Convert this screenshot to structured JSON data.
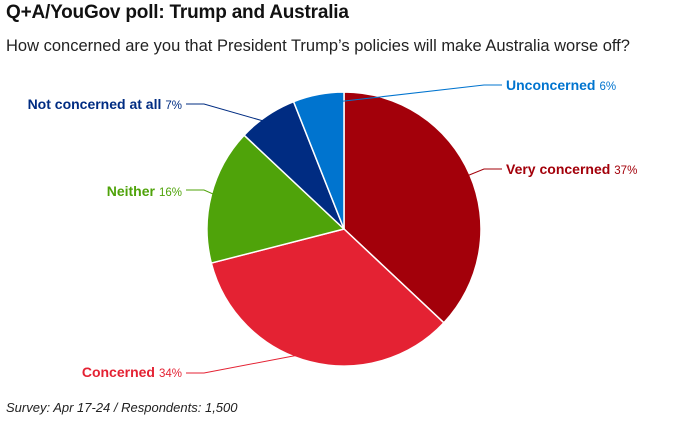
{
  "header": {
    "title": "Q+A/YouGov poll: Trump and Australia",
    "subtitle": "How concerned are you that President Trump’s policies will make Australia worse off?"
  },
  "footer": {
    "note": "Survey: Apr 17-24 / Respondents: 1,500"
  },
  "chart_data": {
    "type": "pie",
    "title": "Q+A/YouGov poll: Trump and Australia",
    "slices": [
      {
        "label": "Very concerned",
        "value": 37,
        "value_label": "37%",
        "color": "#a3000a"
      },
      {
        "label": "Concerned",
        "value": 34,
        "value_label": "34%",
        "color": "#e42233"
      },
      {
        "label": "Neither",
        "value": 16,
        "value_label": "16%",
        "color": "#4fa30a"
      },
      {
        "label": "Not concerned at all",
        "value": 7,
        "value_label": "7%",
        "color": "#002c82"
      },
      {
        "label": "Unconcerned",
        "value": 6,
        "value_label": "6%",
        "color": "#0074cf"
      }
    ],
    "start_angle": "12 o'clock, clockwise",
    "legend": "none (labels beside slices)"
  }
}
